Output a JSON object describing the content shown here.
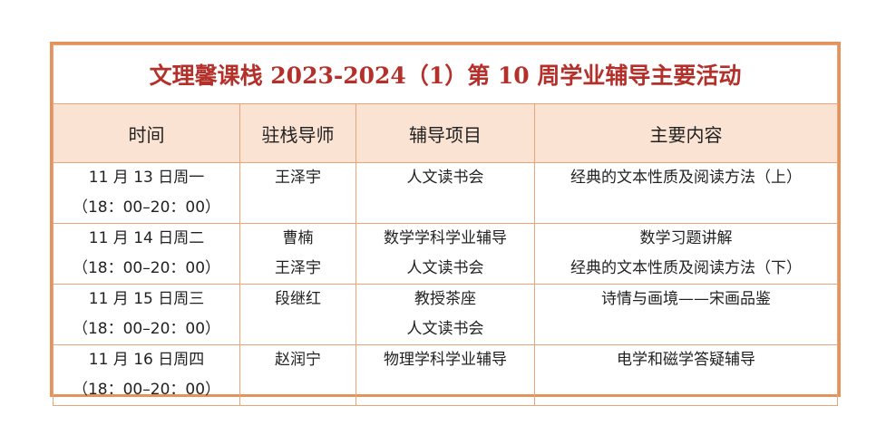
{
  "title": "文理馨课栈 2023-2024（1）第 10 周学业辅导主要活动",
  "headers": [
    "时间",
    "驻栈导师",
    "辅导项目",
    "主要内容"
  ],
  "rows": [
    {
      "date": "11 月 13 日周一",
      "time": "（18：00–20：00）",
      "tutors": [
        "王泽宇"
      ],
      "projects": [
        "人文读书会"
      ],
      "content": [
        "经典的文本性质及阅读方法（上）"
      ]
    },
    {
      "date": "11 月 14 日周二",
      "time": "（18：00–20：00）",
      "tutors": [
        "曹楠",
        "王泽宇"
      ],
      "projects": [
        "数学学科学业辅导",
        "人文读书会"
      ],
      "content": [
        "数学习题讲解",
        "经典的文本性质及阅读方法（下）"
      ]
    },
    {
      "date": "11 月 15 日周三",
      "time": "（18：00–20：00）",
      "tutors": [
        "段继红"
      ],
      "projects": [
        "教授茶座",
        "人文读书会"
      ],
      "content": [
        "诗情与画境——宋画品鉴"
      ]
    },
    {
      "date": "11 月 16 日周四",
      "time": "（18：00–20：00）",
      "tutors": [
        "赵润宁"
      ],
      "projects": [
        "物理学科学业辅导"
      ],
      "content": [
        "电学和磁学答疑辅导"
      ]
    }
  ],
  "colors": {
    "border": "#e3935b",
    "header_bg": "#fbe3d3",
    "title": "#b4302a"
  }
}
